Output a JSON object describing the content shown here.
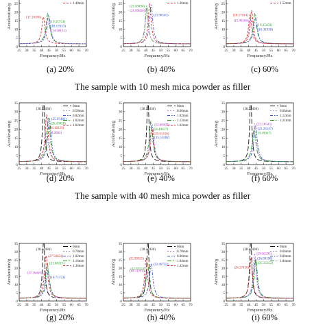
{
  "group_captions": [
    "The sample with 10 mesh mica powder as filler",
    "The sample with 40 mesh mica powder as filler"
  ],
  "colors": {
    "0mm": "#111111",
    "series2": "#c48ad8",
    "series3": "#3a50c8",
    "series4": "#2e9a2e",
    "series5": "#d33030",
    "label0": "#111111",
    "label2": "#b030c8",
    "label3": "#2848c8",
    "label4": "#2e9a2e",
    "label5": "#d33030"
  },
  "chart_data": [
    {
      "type": "line",
      "sublabel": "(a) 20%",
      "xlabel": "Frequency/Hz",
      "ylabel": "Acceleration/g",
      "xlim": [
        25,
        70
      ],
      "xticks": [
        25,
        30,
        35,
        40,
        45,
        50,
        55,
        60,
        65,
        70
      ],
      "ylim": [
        0,
        35
      ],
      "yticks": [
        0,
        5,
        10,
        15,
        20,
        25,
        30,
        35
      ],
      "series": [
        {
          "name": "1.40mm",
          "peak_x": 41.2,
          "peak_y": 17.26206,
          "width": 1.3,
          "color_key": "series5",
          "dash": "3,2",
          "peak_label": "(17.26206)",
          "label_color_key": "label5"
        },
        {
          "peak_x": 44.2,
          "peak_y": 19.35753,
          "width": 1.5,
          "color_key": "series4",
          "dash": "6,2,1.5,2",
          "peak_label": "(19.35753)",
          "label_color_key": "label4"
        },
        {
          "peak_x": 44.6,
          "peak_y": 18.19333,
          "width": 1.5,
          "color_key": "series3",
          "dash": "4,2,1.5,2,1.5,2",
          "peak_label": "(18.19333)",
          "label_color_key": "label3"
        },
        {
          "peak_x": 45.0,
          "peak_y": 14.58131,
          "width": 1.7,
          "color_key": "series2",
          "dash": "2,2",
          "peak_label": "(14.58131)",
          "label_color_key": "label2"
        }
      ],
      "legend_visible": [
        "1.40mm"
      ]
    },
    {
      "type": "line",
      "sublabel": "(b) 40%",
      "xlabel": "Frequency/Hz",
      "ylabel": "Acceleration/g",
      "xlim": [
        25,
        70
      ],
      "xticks": [
        25,
        30,
        35,
        40,
        45,
        50,
        55,
        60,
        65,
        70
      ],
      "ylim": [
        0,
        35
      ],
      "yticks": [
        0,
        5,
        10,
        15,
        20,
        25,
        30,
        35
      ],
      "series": [
        {
          "peak_x": 40.6,
          "peak_y": 23.58094,
          "width": 1.2,
          "color_key": "series4",
          "dash": "6,2,1.5,2",
          "peak_label": "(23.58094)",
          "label_color_key": "label4"
        },
        {
          "peak_x": 40.8,
          "peak_y": 21.99828,
          "width": 1.2,
          "color_key": "series2",
          "dash": "2,2",
          "peak_label": "(21.99828)",
          "label_color_key": "label2"
        },
        {
          "peak_x": 43.6,
          "peak_y": 23.96545,
          "width": 1.3,
          "color_key": "series3",
          "dash": "4,2,1.5,2,1.5,2",
          "peak_label": "(23.96545)",
          "label_color_key": "label3"
        },
        {
          "name": "1.36mm",
          "peak_x": 42.6,
          "peak_y": 24.9,
          "width": 1.2,
          "color_key": "series5",
          "dash": "3,2"
        }
      ],
      "legend_visible": [
        "1.36mm"
      ]
    },
    {
      "type": "line",
      "sublabel": "(c) 60%",
      "xlabel": "Frequency/Hz",
      "ylabel": "Acceleration/g",
      "xlim": [
        25,
        70
      ],
      "xticks": [
        25,
        30,
        35,
        40,
        45,
        50,
        55,
        60,
        65,
        70
      ],
      "ylim": [
        0,
        35
      ],
      "yticks": [
        0,
        5,
        10,
        15,
        20,
        25,
        30,
        35
      ],
      "series": [
        {
          "peak_x": 41.0,
          "peak_y": 18.57614,
          "width": 1.3,
          "color_key": "series5",
          "dash": "3,2",
          "peak_label": "(18.57614)",
          "label_color_key": "label5"
        },
        {
          "peak_x": 41.4,
          "peak_y": 15.40166,
          "width": 1.5,
          "color_key": "series2",
          "dash": "2,2",
          "peak_label": "(15.40166)",
          "label_color_key": "label2"
        },
        {
          "peak_x": 44.2,
          "peak_y": 19.25459,
          "width": 1.4,
          "color_key": "series4",
          "dash": "6,2,1.5,2",
          "peak_label": "(19.25459)",
          "label_color_key": "label4"
        },
        {
          "peak_x": 44.6,
          "peak_y": 16.31938,
          "width": 1.5,
          "color_key": "series3",
          "dash": "4,2,1.5,2,1.5,2",
          "peak_label": "(16.31938)",
          "label_color_key": "label3"
        },
        {
          "name": "1.52mm",
          "peak_x": 42.0,
          "peak_y": 21.0,
          "width": 1.2,
          "color_key": "series5",
          "dash": "3,2"
        }
      ],
      "legend_visible": [
        "1.52mm"
      ]
    },
    {
      "type": "line",
      "sublabel": "(d) 20%",
      "xlabel": "Frequency/Hz",
      "ylabel": "Acceleration/g",
      "xlim": [
        25,
        70
      ],
      "xticks": [
        25,
        30,
        35,
        40,
        45,
        50,
        55,
        60,
        65,
        70
      ],
      "ylim": [
        0,
        35
      ],
      "yticks": [
        0,
        5,
        10,
        15,
        20,
        25,
        30,
        35
      ],
      "series": [
        {
          "name": "0mm",
          "peak_x": 41.4,
          "peak_y": 38.22436,
          "width": 0.9,
          "color_key": "0mm",
          "dash": "7,3",
          "peak_label": "(38.22436)",
          "label_color_key": "label0"
        },
        {
          "name": "0.58mm",
          "peak_x": 43.2,
          "peak_y": 18.2804,
          "width": 1.6,
          "color_key": "series2",
          "dash": "2,2",
          "peak_label": "(18.2804)",
          "label_color_key": "label2"
        },
        {
          "name": "0.82mm",
          "peak_x": 45.2,
          "peak_y": 25.97481,
          "width": 1.4,
          "color_key": "series3",
          "dash": "4,2,1.5,2,1.5,2",
          "peak_label": "(25.97481)",
          "label_color_key": "label3"
        },
        {
          "name": "1.02mm",
          "peak_x": 44.6,
          "peak_y": 26.20828,
          "width": 1.4,
          "color_key": "series4",
          "dash": "6,2,1.5,2",
          "peak_label": "(26.20828)",
          "label_color_key": "label4"
        },
        {
          "name": "1.02mm",
          "peak_x": 43.4,
          "peak_y": 28.18233,
          "width": 1.3,
          "color_key": "series5",
          "dash": "3,2",
          "peak_label": "(28.18233)",
          "label_color_key": "label5"
        }
      ],
      "legend_visible": [
        "0mm",
        "0.58mm",
        "0.82mm",
        "1.02mm",
        "1.02mm"
      ]
    },
    {
      "type": "line",
      "sublabel": "(e) 40%",
      "xlabel": "Frequency/Hz",
      "ylabel": "Acceleration/g",
      "xlim": [
        25,
        70
      ],
      "xticks": [
        25,
        30,
        35,
        40,
        45,
        50,
        55,
        60,
        65,
        70
      ],
      "ylim": [
        0,
        35
      ],
      "yticks": [
        0,
        5,
        10,
        15,
        20,
        25,
        30,
        35
      ],
      "series": [
        {
          "name": "0mm",
          "peak_x": 41.4,
          "peak_y": 38.22436,
          "width": 0.9,
          "color_key": "0mm",
          "dash": "7,3",
          "peak_label": "(38.22436)",
          "label_color_key": "label0"
        },
        {
          "name": "0.66mm",
          "peak_x": 44.4,
          "peak_y": 15.55382,
          "width": 1.6,
          "color_key": "series2",
          "dash": "2,2",
          "peak_label": "(15.55382)",
          "label_color_key": "label3"
        },
        {
          "name": "1.02mm",
          "peak_x": 44.2,
          "peak_y": 22.68307,
          "width": 1.4,
          "color_key": "series3",
          "dash": "4,2,1.5,2,1.5,2",
          "peak_label": "(22.68307)",
          "label_color_key": "label2"
        },
        {
          "name": "1.12mm",
          "peak_x": 43.4,
          "peak_y": 24.49637,
          "width": 1.4,
          "color_key": "series4",
          "dash": "6,2,1.5,2",
          "peak_label": "(24.49637)",
          "label_color_key": "label4"
        },
        {
          "name": "1.62mm",
          "peak_x": 44.0,
          "peak_y": 20.41416,
          "width": 1.4,
          "color_key": "series5",
          "dash": "3,2",
          "peak_label": "(20.41416)",
          "label_color_key": "label5"
        }
      ],
      "legend_visible": [
        "0mm",
        "0.66mm",
        "1.02mm",
        "1.12mm",
        "1.62mm"
      ]
    },
    {
      "type": "line",
      "sublabel": "(f) 60%",
      "xlabel": "Frequency/Hz",
      "ylabel": "Acceleration/g",
      "xlim": [
        25,
        70
      ],
      "xticks": [
        25,
        30,
        35,
        40,
        45,
        50,
        55,
        60,
        65,
        70
      ],
      "ylim": [
        0,
        35
      ],
      "yticks": [
        0,
        5,
        10,
        15,
        20,
        25,
        30,
        35
      ],
      "series": [
        {
          "name": "0mm",
          "peak_x": 41.4,
          "peak_y": 38.22436,
          "width": 0.9,
          "color_key": "0mm",
          "dash": "7,3",
          "peak_label": "(38.22436)",
          "label_color_key": "label0"
        },
        {
          "name": "0.66mm",
          "peak_x": 44.0,
          "peak_y": 23.18545,
          "width": 1.4,
          "color_key": "series2",
          "dash": "2,2",
          "peak_label": "(23.18545)",
          "label_color_key": "label2"
        },
        {
          "name": "1.12mm",
          "peak_x": 44.6,
          "peak_y": 22.26147,
          "width": 1.4,
          "color_key": "series3",
          "dash": "4,2,1.5,2,1.5,2",
          "peak_label": "(22.26147)",
          "label_color_key": "label3"
        },
        {
          "name": "1.21mm",
          "peak_x": 43.6,
          "peak_y": 19.49017,
          "width": 1.5,
          "color_key": "series4",
          "dash": "6,2,1.5,2",
          "peak_label": "(19.49017)",
          "label_color_key": "label4"
        }
      ],
      "legend_visible": [
        "0mm",
        "0.66mm",
        "1.12mm",
        "1.21mm"
      ]
    },
    {
      "type": "line",
      "sublabel": "(g) 20%",
      "xlabel": "Frequency/Hz",
      "ylabel": "Acceleration/g",
      "xlim": [
        25,
        70
      ],
      "xticks": [
        25,
        30,
        35,
        40,
        45,
        50,
        55,
        60,
        65,
        70
      ],
      "ylim": [
        0,
        35
      ],
      "yticks": [
        0,
        5,
        10,
        15,
        20,
        25,
        30,
        35
      ],
      "series": [
        {
          "name": "0mm",
          "peak_x": 41.4,
          "peak_y": 38.22436,
          "width": 0.9,
          "color_key": "0mm",
          "dash": "7,3",
          "peak_label": "(38.22436)",
          "label_color_key": "label0"
        },
        {
          "name": "0.78mm",
          "peak_x": 41.8,
          "peak_y": 17.26416,
          "width": 1.5,
          "color_key": "series2",
          "dash": "2,2",
          "peak_label": "(17.26416)",
          "label_color_key": "label2"
        },
        {
          "name": "1.02mm",
          "peak_x": 44.2,
          "peak_y": 18.71372,
          "width": 1.5,
          "color_key": "series3",
          "dash": "4,2,1.5,2,1.5,2",
          "peak_label": "(18.71372)",
          "label_color_key": "label3"
        },
        {
          "name": "1.16mm",
          "peak_x": 43.8,
          "peak_y": 23.08315,
          "width": 1.4,
          "color_key": "series4",
          "dash": "6,2,1.5,2",
          "peak_label": "(23.08315)",
          "label_color_key": "label4"
        },
        {
          "name": "1.36mm",
          "peak_x": 43.0,
          "peak_y": 27.56654,
          "width": 1.3,
          "color_key": "series5",
          "dash": "3,2",
          "peak_label": "(27.56654)",
          "label_color_key": "label5"
        }
      ],
      "legend_visible": [
        "0mm",
        "0.78mm",
        "1.02mm",
        "1.16mm",
        "1.36mm"
      ]
    },
    {
      "type": "line",
      "sublabel": "(h) 40%",
      "xlabel": "Frequency/Hz",
      "ylabel": "Acceleration/g",
      "xlim": [
        25,
        70
      ],
      "xticks": [
        25,
        30,
        35,
        40,
        45,
        50,
        55,
        60,
        65,
        70
      ],
      "ylim": [
        0,
        35
      ],
      "yticks": [
        0,
        5,
        10,
        15,
        20,
        25,
        30,
        35
      ],
      "series": [
        {
          "name": "0mm",
          "peak_x": 41.4,
          "peak_y": 38.22436,
          "width": 0.9,
          "color_key": "0mm",
          "dash": "7,3",
          "peak_label": "(38.22436)",
          "label_color_key": "label0"
        },
        {
          "name": "0.70mm",
          "peak_x": 40.4,
          "peak_y": 18.51391,
          "width": 1.4,
          "color_key": "series2",
          "dash": "2,2",
          "peak_label": "(18.51391)",
          "label_color_key": "label2"
        },
        {
          "name": "0.86mm",
          "peak_x": 43.6,
          "peak_y": 22.40722,
          "width": 1.4,
          "color_key": "series3",
          "dash": "4,2,1.5,2,1.5,2",
          "peak_label": "(22.40722)",
          "label_color_key": "label3"
        },
        {
          "name": "1.04mm",
          "peak_x": 41.2,
          "peak_y": 22.92514,
          "width": 1.3,
          "color_key": "series4",
          "dash": "6,2,1.5,2",
          "peak_label": "(22.92514)",
          "label_color_key": "label4"
        },
        {
          "name": "1.42mm",
          "peak_x": 40.2,
          "peak_y": 25.99925,
          "width": 1.2,
          "color_key": "series5",
          "dash": "3,2",
          "peak_label": "(25.99925)",
          "label_color_key": "label5"
        }
      ],
      "legend_visible": [
        "0mm",
        "0.70mm",
        "0.86mm",
        "1.04mm",
        "1.42mm"
      ]
    },
    {
      "type": "line",
      "sublabel": "(i) 60%",
      "xlabel": "Frequency/Hz",
      "ylabel": "Acceleration/g",
      "xlim": [
        25,
        70
      ],
      "xticks": [
        25,
        30,
        35,
        40,
        45,
        50,
        55,
        60,
        65,
        70
      ],
      "ylim": [
        0,
        35
      ],
      "yticks": [
        0,
        5,
        10,
        15,
        20,
        25,
        30,
        35
      ],
      "series": [
        {
          "name": "0mm",
          "peak_x": 41.4,
          "peak_y": 38.22436,
          "width": 0.9,
          "color_key": "0mm",
          "dash": "7,3",
          "peak_label": "(38.22436)",
          "label_color_key": "label0"
        },
        {
          "name": "0.66mm",
          "peak_x": 44.0,
          "peak_y": 29.02295,
          "width": 1.2,
          "color_key": "series2",
          "dash": "2,2",
          "peak_label": "(29.02295)",
          "label_color_key": "label2"
        },
        {
          "name": "0.86mm",
          "peak_x": 44.4,
          "peak_y": 26.09198,
          "width": 1.3,
          "color_key": "series3",
          "dash": "4,2,1.5,2,1.5,2",
          "peak_label": "(26.09198)",
          "label_color_key": "label3"
        },
        {
          "name": "1.04mm",
          "peak_x": 44.8,
          "peak_y": 25.35352,
          "width": 1.3,
          "color_key": "series4",
          "dash": "6,2,1.5,2",
          "peak_label": "(25.35352)",
          "label_color_key": "label4"
        },
        {
          "peak_x": 41.6,
          "peak_y": 26.37426,
          "width": 1.2,
          "color_key": "series5",
          "dash": "3,2",
          "peak_label": "(26.37426)",
          "label_color_key": "label5"
        }
      ],
      "legend_visible": [
        "0mm",
        "0.66mm",
        "0.86mm",
        "1.04mm"
      ]
    }
  ]
}
